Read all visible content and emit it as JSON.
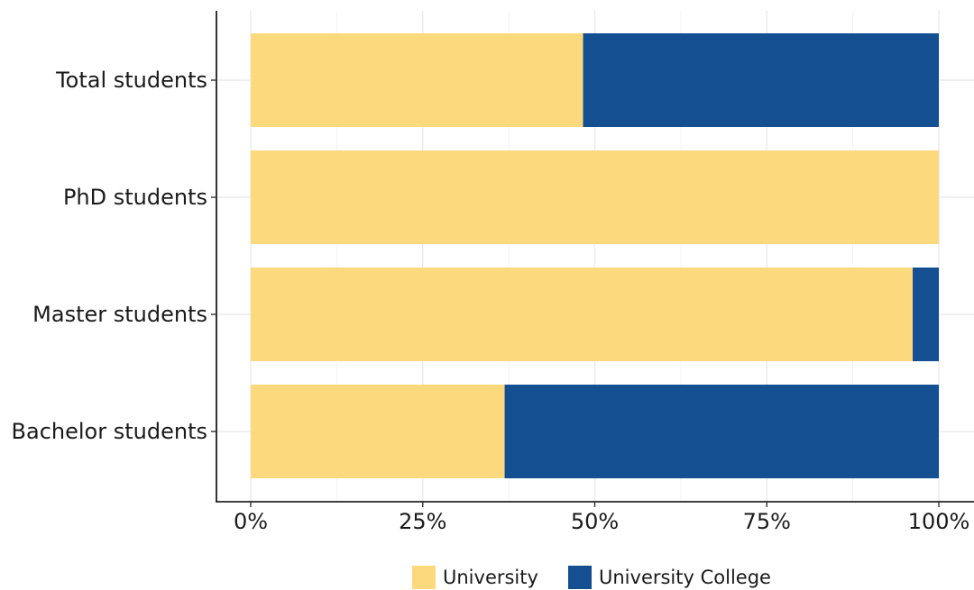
{
  "chart_data": {
    "type": "bar",
    "orientation": "horizontal",
    "stacking": "percent",
    "categories": [
      "Total students",
      "PhD students",
      "Master students",
      "Bachelor students"
    ],
    "series": [
      {
        "name": "University",
        "color": "#FDD97D",
        "values": [
          48.3,
          100,
          96.2,
          36.9
        ]
      },
      {
        "name": "University College",
        "color": "#134F91",
        "values": [
          51.7,
          0,
          3.8,
          63.1
        ]
      }
    ],
    "x_ticks": [
      0,
      25,
      50,
      75,
      100
    ],
    "x_tick_labels": [
      "0%",
      "25%",
      "50%",
      "75%",
      "100%"
    ],
    "xlim": [
      0,
      100
    ],
    "xlabel": "",
    "ylabel": "",
    "title": "",
    "grid": true,
    "legend_position": "bottom"
  }
}
